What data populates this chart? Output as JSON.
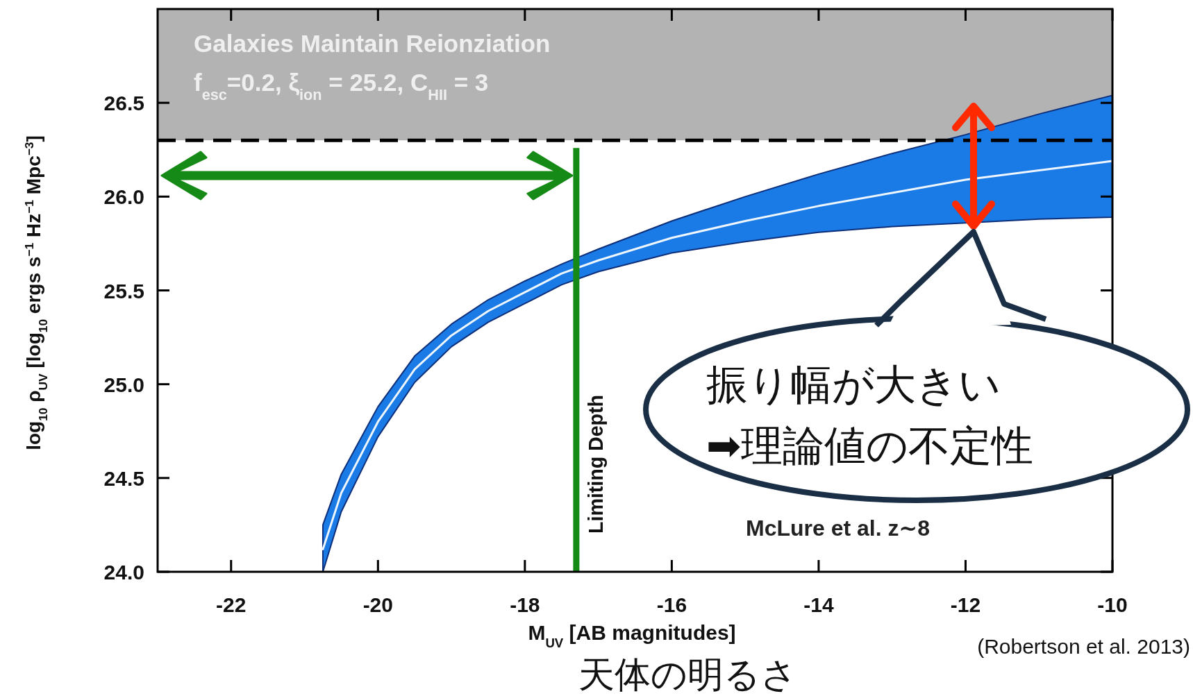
{
  "chart_data": {
    "type": "line",
    "xlabel": "M$_{UV}$ [AB magnitudes]",
    "ylabel": "log$_{10}$ ρ$_{UV}$ [log$_{10}$ ergs s$^{−1}$ Hz$^{−1}$ Mpc$^{−3}$]",
    "x": [
      -20.75,
      -20.5,
      -20.0,
      -19.5,
      -19.0,
      -18.5,
      -18.0,
      -17.5,
      -17.0,
      -16.0,
      -15.0,
      -14.0,
      -13.0,
      -12.0,
      -11.0,
      -10.0
    ],
    "series": [
      {
        "color": "#eef6ff",
        "values": [
          24.12,
          24.42,
          24.8,
          25.08,
          25.26,
          25.39,
          25.49,
          25.59,
          25.66,
          25.78,
          25.87,
          25.95,
          26.02,
          26.09,
          26.14,
          26.19
        ],
        "lower": [
          24.0,
          24.32,
          24.72,
          25.01,
          25.2,
          25.33,
          25.43,
          25.53,
          25.6,
          25.7,
          25.76,
          25.81,
          25.84,
          25.86,
          25.88,
          25.89
        ],
        "upper": [
          24.25,
          24.52,
          24.88,
          25.15,
          25.32,
          25.45,
          25.55,
          25.64,
          25.72,
          25.87,
          26.0,
          26.12,
          26.23,
          26.33,
          26.44,
          26.54
        ]
      }
    ],
    "xlim": [
      -23,
      -10
    ],
    "ylim": [
      24,
      27
    ],
    "xticks": [
      -22,
      -20,
      -18,
      -16,
      -14,
      -12,
      -10
    ],
    "yticks": [
      {
        "value": 24,
        "label": "24.0"
      },
      24.5,
      {
        "value": 25,
        "label": "25.0"
      },
      25.5,
      {
        "value": 26,
        "label": "26.0"
      },
      26.5
    ],
    "bands": [
      {
        "axis": "y",
        "from": 26.3,
        "to": 27,
        "color": "#b3b3b3"
      }
    ],
    "ref_lines": [
      {
        "axis": "y",
        "value": 26.3,
        "color": "#000000",
        "line_style": "dashed"
      },
      {
        "axis": "x",
        "value": -17.3,
        "label": "Limiting Depth",
        "color": "#168a16"
      }
    ],
    "annotations": [
      "Galaxies Maintain Reionziation",
      "f$_{esc}$=0.2, ξ$_{ion}$ = 25.2, C$_{HII}$ = 3",
      "McLure et al. z∼8",
      "(Robertson et al. 2013)",
      "天体の明るさ",
      "振り幅が大きい\n➡理論値の不定性"
    ]
  }
}
